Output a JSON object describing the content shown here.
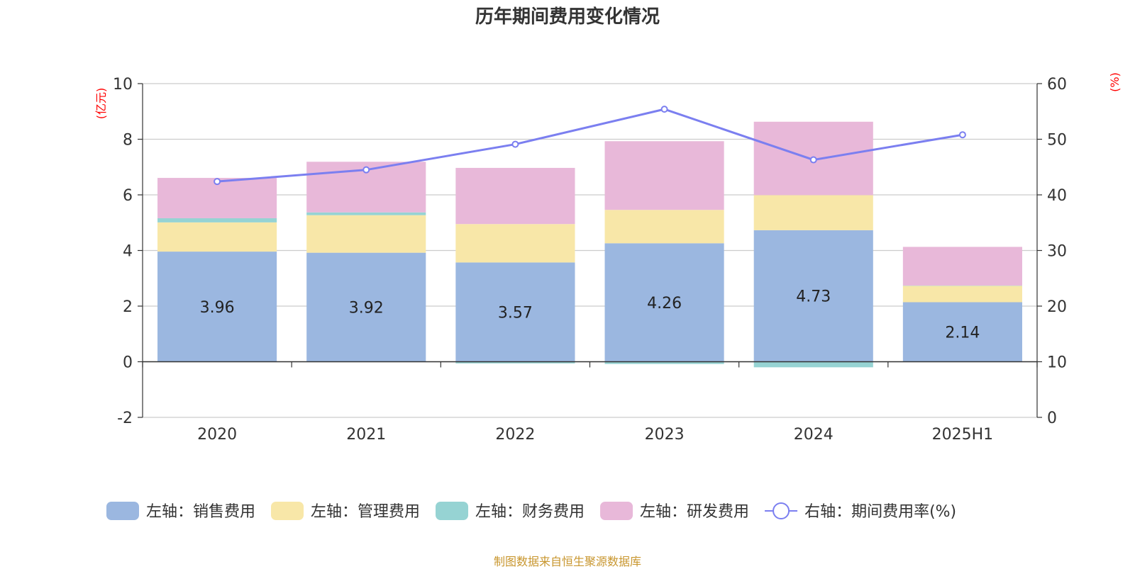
{
  "chart_data": {
    "type": "bar",
    "title": "历年期间费用变化情况",
    "y_left_unit": "(亿元)",
    "y_right_unit": "(%)",
    "categories": [
      "2020",
      "2021",
      "2022",
      "2023",
      "2024",
      "2025H1"
    ],
    "y_left_range": [
      -2,
      10
    ],
    "y_left_ticks": [
      "-2",
      "0",
      "2",
      "4",
      "6",
      "8",
      "10"
    ],
    "y_right_range": [
      0,
      60
    ],
    "y_right_ticks": [
      "0",
      "10",
      "20",
      "30",
      "40",
      "50",
      "60"
    ],
    "grid": true,
    "legend_position": "bottom",
    "series": [
      {
        "name": "左轴：销售费用",
        "type": "bar",
        "axis": "left",
        "color": "#9bb7e0",
        "values": [
          3.96,
          3.92,
          3.57,
          4.26,
          4.73,
          2.14
        ],
        "labels": [
          "3.96",
          "3.92",
          "3.57",
          "4.26",
          "4.73",
          "2.14"
        ]
      },
      {
        "name": "左轴：管理费用",
        "type": "bar",
        "axis": "left",
        "color": "#f8e7a8",
        "values": [
          1.05,
          1.35,
          1.38,
          1.2,
          1.26,
          0.59
        ]
      },
      {
        "name": "左轴：财务费用",
        "type": "bar",
        "axis": "left",
        "color": "#96d3d3",
        "values": [
          0.15,
          0.1,
          -0.06,
          -0.08,
          -0.2,
          0.01
        ]
      },
      {
        "name": "左轴：研发费用",
        "type": "bar",
        "axis": "left",
        "color": "#e8b8d9",
        "values": [
          1.45,
          1.82,
          2.02,
          2.47,
          2.64,
          1.39
        ]
      },
      {
        "name": "右轴：期间费用率(%)",
        "type": "line",
        "axis": "right",
        "color": "#7b7ff0",
        "values": [
          42.4,
          44.5,
          49.1,
          55.4,
          46.3,
          50.8
        ]
      }
    ]
  },
  "source": "制图数据来自恒生聚源数据库"
}
